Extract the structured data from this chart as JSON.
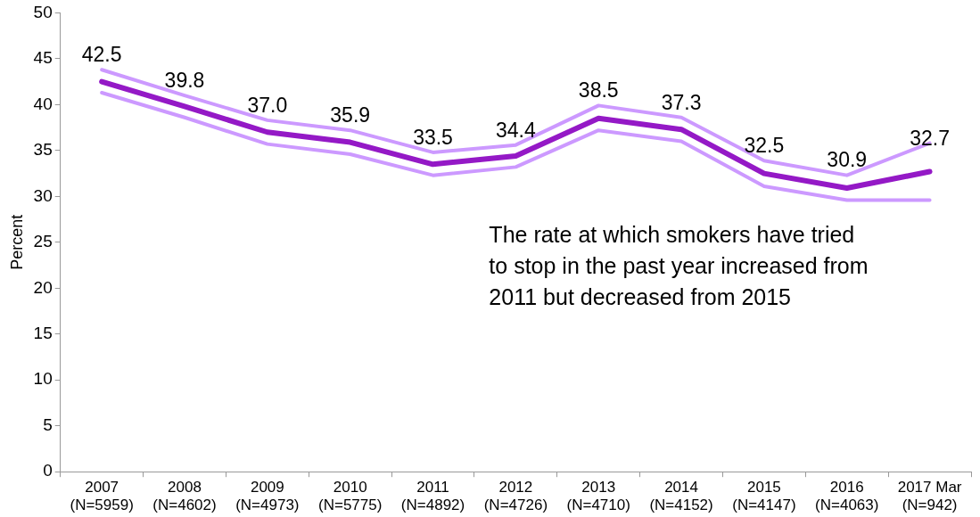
{
  "chart_data": {
    "type": "line",
    "ylabel": "Percent",
    "categories": [
      "2007\n(N=5959)",
      "2008\n(N=4602)",
      "2009\n(N=4973)",
      "2010\n(N=5775)",
      "2011\n(N=4892)",
      "2012\n(N=4726)",
      "2013\n(N=4710)",
      "2014\n(N=4152)",
      "2015\n(N=4147)",
      "2016\n(N=4063)",
      "2017 Mar\n(N=942)"
    ],
    "series": [
      {
        "color": "#cc99ff",
        "values": [
          41.3,
          38.6,
          35.7,
          34.6,
          32.3,
          33.2,
          37.2,
          36.0,
          31.1,
          29.6,
          29.6
        ]
      },
      {
        "color": "#cc99ff",
        "values": [
          43.8,
          41.0,
          38.3,
          37.2,
          34.8,
          35.6,
          39.9,
          38.6,
          33.9,
          32.3,
          35.8
        ]
      },
      {
        "color": "#9419c6",
        "values": [
          42.5,
          39.8,
          37.0,
          35.9,
          33.5,
          34.4,
          38.5,
          37.3,
          32.5,
          30.9,
          32.7
        ],
        "value_labels": [
          "42.5",
          "39.8",
          "37.0",
          "35.9",
          "33.5",
          "34.4",
          "38.5",
          "37.3",
          "32.5",
          "30.9",
          "32.7"
        ]
      }
    ],
    "ylim": [
      0,
      50
    ],
    "yticks": [
      0,
      5,
      10,
      15,
      20,
      25,
      30,
      35,
      40,
      45,
      50
    ],
    "grid": false,
    "legend": false,
    "marker": "none",
    "line_style": "solid",
    "annotations": [
      "The rate at which smokers have tried\nto stop in the past year increased from\n2011 but decreased from 2015"
    ]
  }
}
